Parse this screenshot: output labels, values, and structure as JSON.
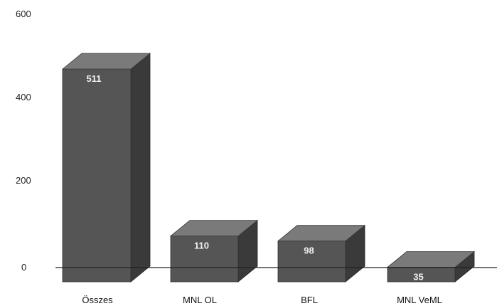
{
  "chart_data": {
    "type": "bar",
    "style": "3d",
    "title": "",
    "xlabel": "",
    "ylabel": "",
    "categories": [
      "Összes",
      "MNL OL",
      "BFL",
      "MNL VeML"
    ],
    "values": [
      511,
      110,
      98,
      35
    ],
    "data_labels": [
      "511",
      "110",
      "98",
      "35"
    ],
    "yticks": [
      "600",
      "400",
      "200",
      "0"
    ],
    "ylim": [
      0,
      600
    ],
    "grid": false,
    "legend": "none",
    "colors": {
      "bar_front": "#555555",
      "bar_top": "#7a7a7a",
      "bar_side": "#3a3a3a",
      "axis": "#222222"
    }
  }
}
